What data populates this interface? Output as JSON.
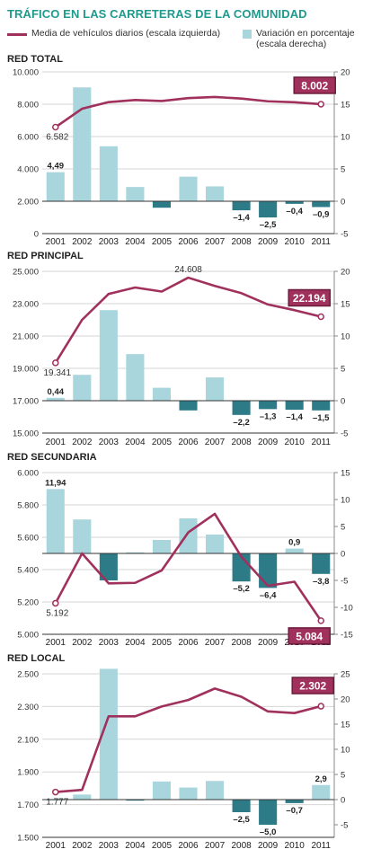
{
  "title": "TRÁFICO EN LAS CARRETERAS DE LA COMUNIDAD",
  "legend": {
    "line_label": "Media de vehículos diarios (escala izquierda)",
    "bar_label": "Variación en porcentaje (escala derecha)"
  },
  "colors": {
    "line": "#a0305c",
    "bar_positive": "#a9d5dc",
    "bar_negative": "#2e7b88",
    "title": "#1e9a8e",
    "highlight_box": "#a0305c"
  },
  "chart_data": [
    {
      "type": "bar",
      "title": "RED TOTAL",
      "categories": [
        "2001",
        "2002",
        "2003",
        "2004",
        "2005",
        "2006",
        "2007",
        "2008",
        "2009",
        "2010",
        "2011"
      ],
      "series": [
        {
          "name": "Media de vehículos diarios (escala izquierda)",
          "axis": "left",
          "type": "line",
          "values": [
            6582,
            7720,
            8130,
            8260,
            8200,
            8380,
            8450,
            8350,
            8180,
            8120,
            8002
          ]
        },
        {
          "name": "Variación en porcentaje (escala derecha)",
          "axis": "right",
          "type": "bar",
          "values": [
            4.49,
            17.6,
            8.5,
            2.2,
            -1.0,
            3.8,
            2.3,
            -1.4,
            -2.5,
            -0.4,
            -0.9
          ]
        }
      ],
      "left_axis": {
        "min": 0,
        "max": 10000,
        "ticks": [
          "0",
          "2.000",
          "4.000",
          "6.000",
          "8.000",
          "10.000"
        ],
        "tick_values": [
          0,
          2000,
          4000,
          6000,
          8000,
          10000
        ]
      },
      "right_axis": {
        "min": -5,
        "max": 20,
        "ticks": [
          "-5",
          "0",
          "5",
          "10",
          "15",
          "20"
        ],
        "tick_values": [
          -5,
          0,
          5,
          10,
          15,
          20
        ]
      },
      "annotations": {
        "line_first": "6.582",
        "line_last": "8.002",
        "bar_labels": [
          {
            "index": 0,
            "text": "4,49"
          },
          {
            "index": 7,
            "text": "–1,4"
          },
          {
            "index": 8,
            "text": "–2,5"
          },
          {
            "index": 9,
            "text": "–0,4"
          },
          {
            "index": 10,
            "text": "–0,9"
          }
        ]
      }
    },
    {
      "type": "bar",
      "title": "RED PRINCIPAL",
      "categories": [
        "2001",
        "2002",
        "2003",
        "2004",
        "2005",
        "2006",
        "2007",
        "2008",
        "2009",
        "2010",
        "2011"
      ],
      "series": [
        {
          "name": "Media de vehículos diarios (escala izquierda)",
          "axis": "left",
          "type": "line",
          "values": [
            19341,
            22000,
            23600,
            24000,
            23750,
            24608,
            24100,
            23650,
            22950,
            22600,
            22194
          ]
        },
        {
          "name": "Variación en porcentaje (escala derecha)",
          "axis": "right",
          "type": "bar",
          "values": [
            0.44,
            4.0,
            14.0,
            7.2,
            2.0,
            -1.5,
            3.6,
            -2.2,
            -1.3,
            -1.4,
            -1.5
          ]
        }
      ],
      "left_axis": {
        "min": 15000,
        "max": 25000,
        "ticks": [
          "15.000",
          "17.000",
          "19.000",
          "21.000",
          "23.000",
          "25.000"
        ],
        "tick_values": [
          15000,
          17000,
          19000,
          21000,
          23000,
          25000
        ]
      },
      "right_axis": {
        "min": -5,
        "max": 20,
        "ticks": [
          "-5",
          "0",
          "5",
          "10",
          "15",
          "20"
        ],
        "tick_values": [
          -5,
          0,
          5,
          10,
          15,
          20
        ]
      },
      "annotations": {
        "line_first": "19.341",
        "line_peak": {
          "index": 5,
          "text": "24.608"
        },
        "line_last": "22.194",
        "bar_labels": [
          {
            "index": 0,
            "text": "0,44"
          },
          {
            "index": 7,
            "text": "–2,2"
          },
          {
            "index": 8,
            "text": "–1,3"
          },
          {
            "index": 9,
            "text": "–1,4"
          },
          {
            "index": 10,
            "text": "–1,5"
          }
        ]
      }
    },
    {
      "type": "bar",
      "title": "RED SECUNDARIA",
      "categories": [
        "2001",
        "2002",
        "2003",
        "2004",
        "2005",
        "2006",
        "2007",
        "2008",
        "2009",
        "2010",
        "2011"
      ],
      "series": [
        {
          "name": "Media de vehículos diarios (escala izquierda)",
          "axis": "left",
          "type": "line",
          "values": [
            5192,
            5500,
            5315,
            5318,
            5395,
            5630,
            5745,
            5480,
            5300,
            5325,
            5084
          ]
        },
        {
          "name": "Variación en porcentaje (escala derecha)",
          "axis": "right",
          "type": "bar",
          "values": [
            11.94,
            6.3,
            -5.0,
            0.2,
            2.5,
            6.5,
            3.5,
            -5.2,
            -6.4,
            0.9,
            -3.8
          ]
        }
      ],
      "left_axis": {
        "min": 5000,
        "max": 6000,
        "ticks": [
          "5.000",
          "5.200",
          "5.400",
          "5.600",
          "5.800",
          "6.000"
        ],
        "tick_values": [
          5000,
          5200,
          5400,
          5600,
          5800,
          6000
        ]
      },
      "right_axis": {
        "min": -15,
        "max": 15,
        "ticks": [
          "-15",
          "-10",
          "-5",
          "0",
          "5",
          "10",
          "15"
        ],
        "tick_values": [
          -15,
          -10,
          -5,
          0,
          5,
          10,
          15
        ]
      },
      "annotations": {
        "line_first": "5.192",
        "line_last": "5.084",
        "bar_labels": [
          {
            "index": 0,
            "text": "11,94"
          },
          {
            "index": 7,
            "text": "–5,2"
          },
          {
            "index": 8,
            "text": "–6,4"
          },
          {
            "index": 9,
            "text": "0,9"
          },
          {
            "index": 10,
            "text": "–3,8"
          }
        ]
      }
    },
    {
      "type": "bar",
      "title": "RED LOCAL",
      "categories": [
        "2001",
        "2002",
        "2003",
        "2004",
        "2005",
        "2006",
        "2007",
        "2008",
        "2009",
        "2010",
        "2011"
      ],
      "series": [
        {
          "name": "Media de vehículos diarios (escala izquierda)",
          "axis": "left",
          "type": "line",
          "values": [
            1777,
            1790,
            2240,
            2240,
            2300,
            2340,
            2410,
            2360,
            2270,
            2260,
            2302
          ]
        },
        {
          "name": "Variación en porcentaje (escala derecha)",
          "axis": "right",
          "type": "bar",
          "values": [
            0.0,
            1.0,
            26.0,
            -0.2,
            3.6,
            2.4,
            3.7,
            -2.5,
            -5.0,
            -0.7,
            2.9
          ]
        }
      ],
      "left_axis": {
        "min": 1500,
        "max": 2500,
        "ticks": [
          "1.500",
          "1.700",
          "1.900",
          "2.100",
          "2.300",
          "2.500"
        ],
        "tick_values": [
          1500,
          1700,
          1900,
          2100,
          2300,
          2500
        ]
      },
      "right_axis": {
        "min": -7.5,
        "max": 25,
        "ticks": [
          "-5",
          "0",
          "5",
          "10",
          "15",
          "20",
          "25"
        ],
        "tick_values": [
          -5,
          0,
          5,
          10,
          15,
          20,
          25
        ]
      },
      "annotations": {
        "line_first": "1.777",
        "line_last": "2.302",
        "bar_labels": [
          {
            "index": 7,
            "text": "–2,5"
          },
          {
            "index": 8,
            "text": "–5,0"
          },
          {
            "index": 9,
            "text": "–0,7"
          },
          {
            "index": 10,
            "text": "2,9"
          }
        ]
      }
    }
  ]
}
